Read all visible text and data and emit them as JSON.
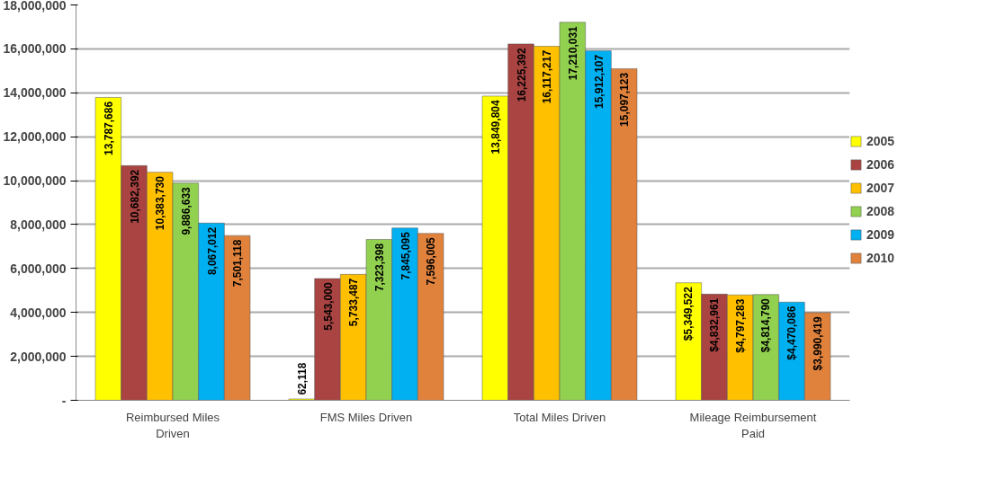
{
  "chart_data": {
    "type": "bar",
    "categories": [
      "Reimbursed Miles Driven",
      "FMS Miles Driven",
      "Total Miles Driven",
      "Mileage Reimbursement Paid"
    ],
    "series": [
      {
        "name": "2005",
        "color": "#ffff00",
        "values": [
          13787686,
          62118,
          13849804,
          5349522
        ],
        "value_labels": [
          "13,787,686",
          "62,118",
          "13,849,804",
          "$5,349,522"
        ]
      },
      {
        "name": "2006",
        "color": "#a94442",
        "values": [
          10682392,
          5543000,
          16225392,
          4832961
        ],
        "value_labels": [
          "10,682,392",
          "5,543,000",
          "16,225,392",
          "$4,832,961"
        ]
      },
      {
        "name": "2007",
        "color": "#ffc000",
        "values": [
          10383730,
          5733487,
          16117217,
          4797283
        ],
        "value_labels": [
          "10,383,730",
          "5,733,487",
          "16,117,217",
          "$4,797,283"
        ]
      },
      {
        "name": "2008",
        "color": "#92d050",
        "values": [
          9886633,
          7323398,
          17210031,
          4814790
        ],
        "value_labels": [
          "9,886,633",
          "7,323,398",
          "17,210,031",
          "$4,814,790"
        ]
      },
      {
        "name": "2009",
        "color": "#00b0f0",
        "values": [
          8067012,
          7845095,
          15912107,
          4470086
        ],
        "value_labels": [
          "8,067,012",
          "7,845,095",
          "15,912,107",
          "$4,470,086"
        ]
      },
      {
        "name": "2010",
        "color": "#e0823c",
        "values": [
          7501118,
          7596005,
          15097123,
          3990419
        ],
        "value_labels": [
          "7,501,118",
          "7,596,005",
          "15,097,123",
          "$3,990,419"
        ]
      }
    ],
    "ylim": [
      0,
      18000000
    ],
    "yticks": [
      {
        "value": 0,
        "label": "-"
      },
      {
        "value": 2000000,
        "label": "2,000,000"
      },
      {
        "value": 4000000,
        "label": "4,000,000"
      },
      {
        "value": 6000000,
        "label": "6,000,000"
      },
      {
        "value": 8000000,
        "label": "8,000,000"
      },
      {
        "value": 10000000,
        "label": "10,000,000"
      },
      {
        "value": 12000000,
        "label": "12,000,000"
      },
      {
        "value": 14000000,
        "label": "14,000,000"
      },
      {
        "value": 16000000,
        "label": "16,000,000"
      },
      {
        "value": 18000000,
        "label": "18,000,000"
      }
    ],
    "grid": "y",
    "legend": "right"
  }
}
